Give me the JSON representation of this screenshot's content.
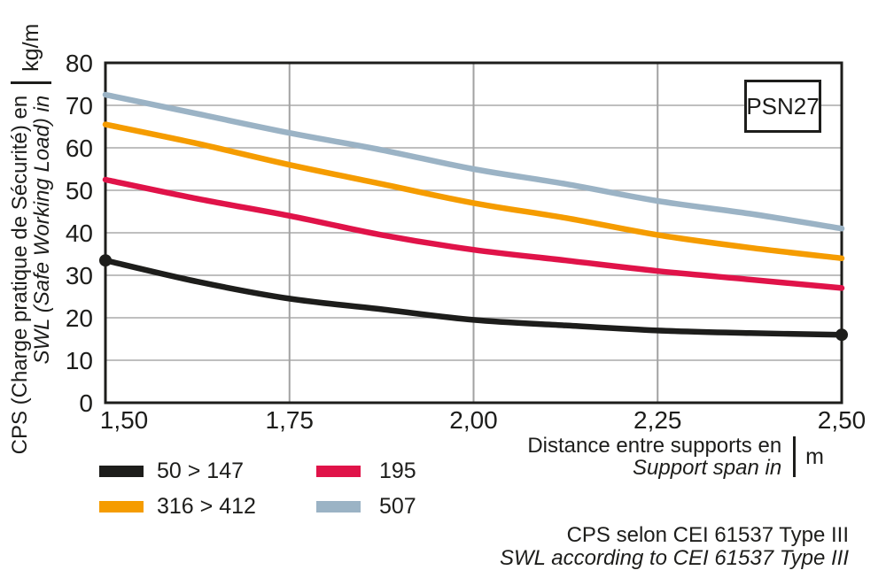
{
  "ref_label": "PSN27",
  "y_axis": {
    "title_fr": "CPS (Charge pratique de Sécurité) en",
    "title_en": "SWL (Safe Working Load) in",
    "unit": "kg/m"
  },
  "x_axis": {
    "title_fr": "Distance entre supports en",
    "title_en": "Support span in",
    "unit": "m"
  },
  "legend": {
    "items": [
      {
        "label": "50 > 147",
        "color": "#1d1d1b"
      },
      {
        "label": "195",
        "color": "#e01349"
      },
      {
        "label": "316 > 412",
        "color": "#f59c00"
      },
      {
        "label": "507",
        "color": "#9bb3c5"
      }
    ]
  },
  "note": {
    "fr": "CPS selon CEI 61537 Type III",
    "en": "SWL according to CEI 61537 Type III"
  },
  "chart_data": {
    "type": "line",
    "title": "PSN27",
    "xlabel": "Distance entre supports en / Support span in (m)",
    "ylabel": "CPS (Charge pratique de Sécurité) en / SWL (Safe Working Load) in (kg/m)",
    "x": [
      1.5,
      1.625,
      1.75,
      1.875,
      2.0,
      2.125,
      2.25,
      2.375,
      2.5
    ],
    "x_ticks": [
      1.5,
      1.75,
      2.0,
      2.25,
      2.5
    ],
    "x_tick_labels": [
      "1,50",
      "1,75",
      "2,00",
      "2,25",
      "2,50"
    ],
    "y_ticks": [
      0,
      10,
      20,
      30,
      40,
      50,
      60,
      70,
      80
    ],
    "xlim": [
      1.5,
      2.5
    ],
    "ylim": [
      0,
      80
    ],
    "grid": true,
    "legend_position": "bottom-left",
    "series": [
      {
        "name": "507",
        "color": "#9bb3c5",
        "endpoint_dots": false,
        "values": [
          72.5,
          68.0,
          63.5,
          59.5,
          55.0,
          51.5,
          47.5,
          44.5,
          41.0
        ]
      },
      {
        "name": "316 > 412",
        "color": "#f59c00",
        "endpoint_dots": false,
        "values": [
          65.5,
          61.0,
          56.0,
          51.5,
          47.0,
          43.5,
          39.5,
          36.5,
          34.0
        ]
      },
      {
        "name": "195",
        "color": "#e01349",
        "endpoint_dots": false,
        "values": [
          52.5,
          48.0,
          44.0,
          39.5,
          36.0,
          33.5,
          31.0,
          29.0,
          27.0
        ]
      },
      {
        "name": "50 > 147",
        "color": "#1d1d1b",
        "endpoint_dots": true,
        "values": [
          33.5,
          28.5,
          24.5,
          22.0,
          19.5,
          18.2,
          17.0,
          16.4,
          16.0
        ]
      }
    ]
  }
}
